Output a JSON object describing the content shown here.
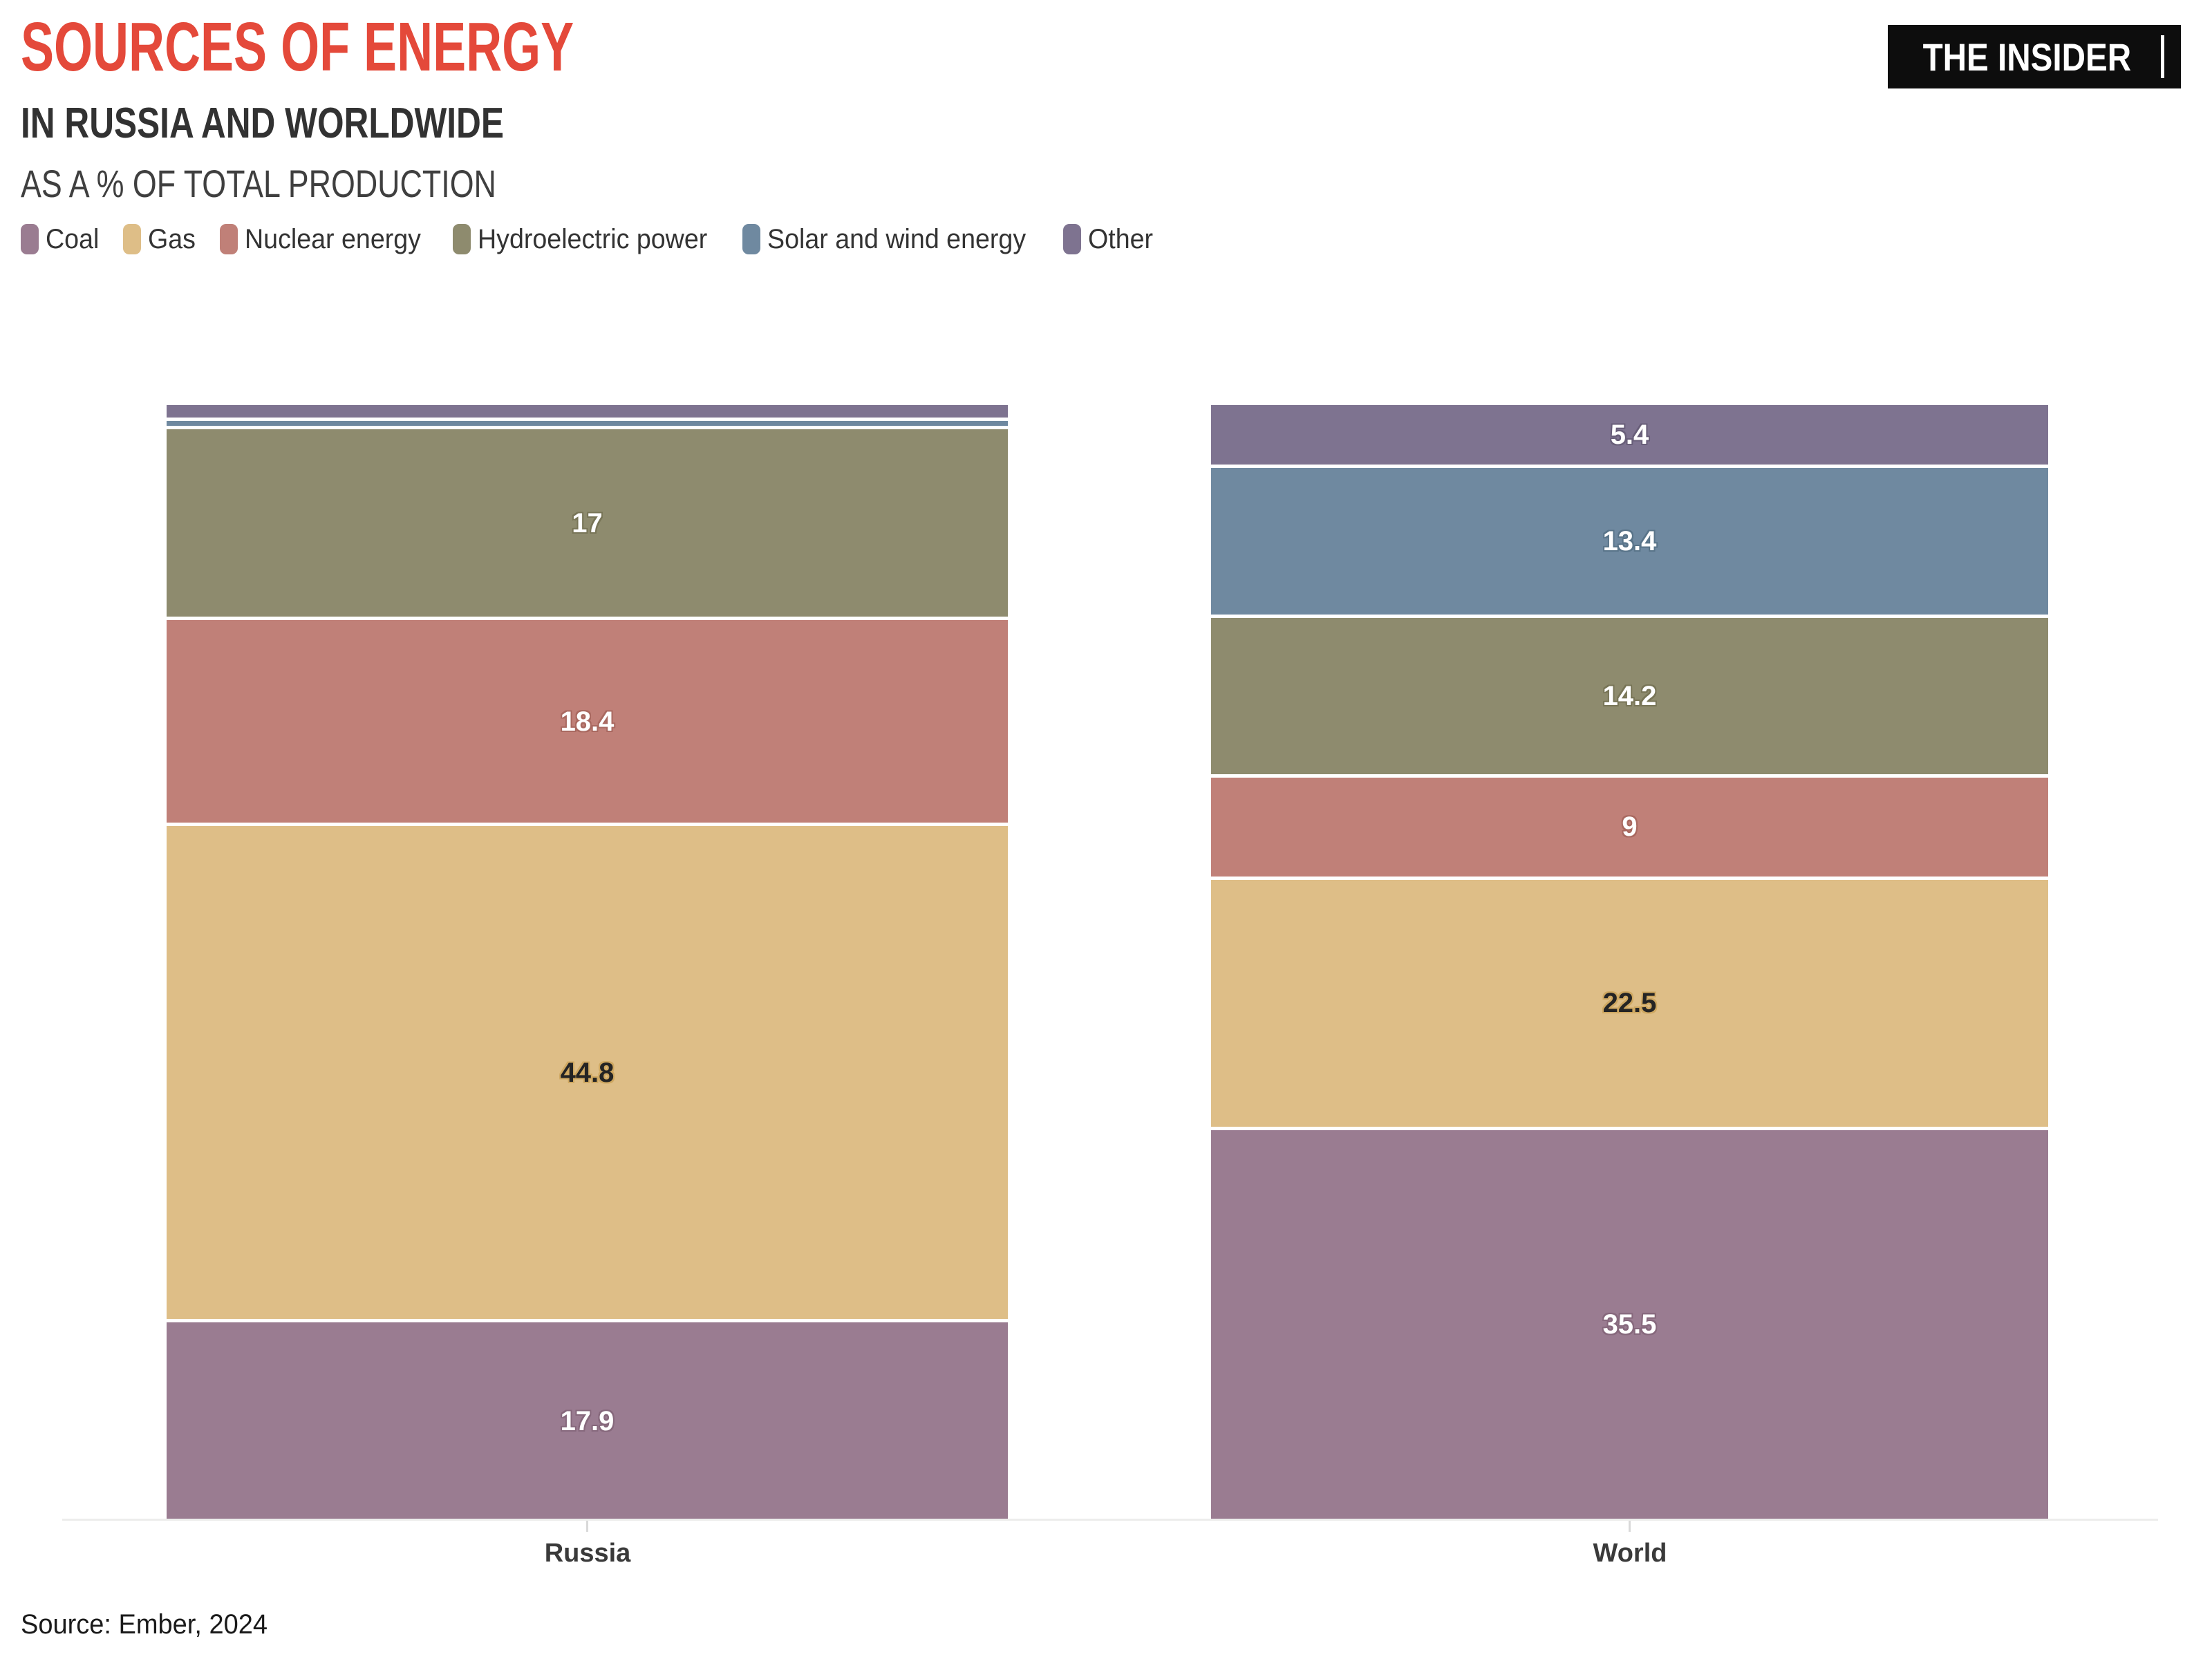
{
  "header": {
    "title": "SOURCES OF ENERGY",
    "subtitle": "IN RUSSIA AND WORLDWIDE",
    "note": "AS A % OF TOTAL PRODUCTION",
    "logo": "THE INSIDER"
  },
  "source": "Source: Ember, 2024",
  "colors": {
    "title": "#e4493a",
    "background": "#ffffff",
    "logo_bg": "#0d0d0d",
    "logo_text": "#ffffff",
    "axis_line": "#ededec",
    "category_label": "#3a3a3a"
  },
  "chart_data": {
    "type": "bar",
    "stacked": true,
    "orientation": "vertical",
    "categories": [
      "Russia",
      "World"
    ],
    "series": [
      {
        "name": "Coal",
        "color": "#9a7c91",
        "halo": "#86687c",
        "label_color": "#ffffff",
        "values": [
          17.9,
          35.5
        ],
        "labels": [
          "17.9",
          "35.5"
        ]
      },
      {
        "name": "Gas",
        "color": "#debe87",
        "halo": "#cfa861",
        "label_color": "#242424",
        "values": [
          44.8,
          22.5
        ],
        "labels": [
          "44.8",
          "22.5"
        ]
      },
      {
        "name": "Nuclear energy",
        "color": "#c08078",
        "halo": "#a96960",
        "label_color": "#ffffff",
        "values": [
          18.4,
          9
        ],
        "labels": [
          "18.4",
          "9"
        ]
      },
      {
        "name": "Hydroelectric power",
        "color": "#8e8b6e",
        "halo": "#787557",
        "label_color": "#ffffff",
        "values": [
          17,
          14.2
        ],
        "labels": [
          "17",
          "14.2"
        ]
      },
      {
        "name": "Solar and wind energy",
        "color": "#6f89a0",
        "halo": "#597489",
        "label_color": "#ffffff",
        "values": [
          0.5,
          13.4
        ],
        "labels": [
          "",
          "13.4"
        ]
      },
      {
        "name": "Other",
        "color": "#7e7390",
        "halo": "#685e79",
        "label_color": "#ffffff",
        "values": [
          1.1,
          5.4
        ],
        "labels": [
          "",
          "5.4"
        ]
      }
    ],
    "ylim": [
      0,
      100
    ],
    "grid": false,
    "legend_position": "top",
    "value_labels_shown": true
  }
}
